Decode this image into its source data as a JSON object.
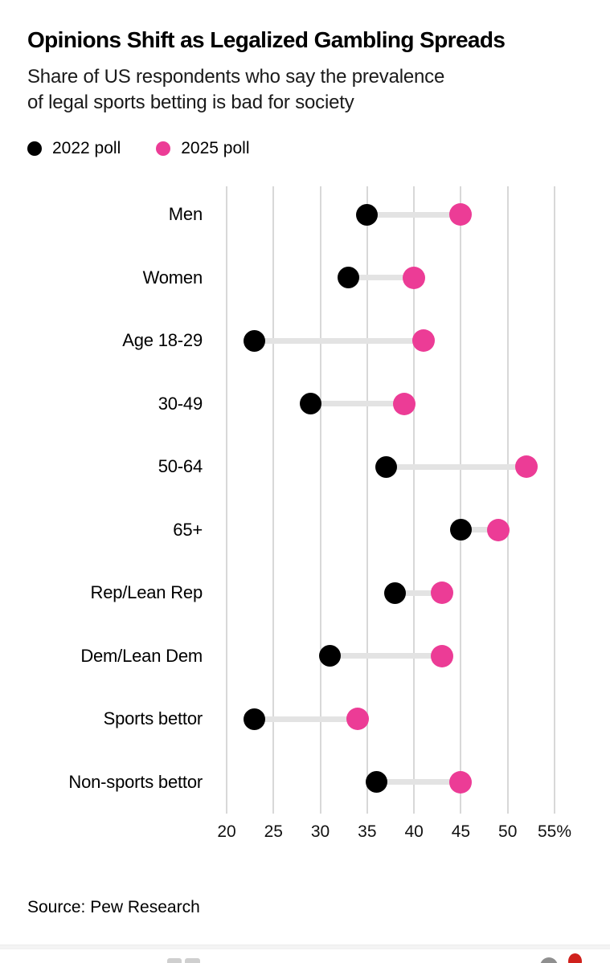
{
  "header": {
    "title": "Opinions Shift as Legalized Gambling Spreads",
    "subtitle_lines": [
      "Share of US respondents who say the prevalence",
      "of legal sports betting is bad for society"
    ]
  },
  "legend": {
    "items": [
      {
        "label": "2022 poll",
        "color": "#000000"
      },
      {
        "label": "2025 poll",
        "color": "#ec3c96"
      }
    ]
  },
  "chart_data": {
    "type": "scatter",
    "subtype": "dumbbell-dot-plot",
    "categories": [
      "Men",
      "Women",
      "Age 18-29",
      "30-49",
      "50-64",
      "65+",
      "Rep/Lean Rep",
      "Dem/Lean Dem",
      "Sports bettor",
      "Non-sports bettor"
    ],
    "series": [
      {
        "name": "2022 poll",
        "color": "#000000",
        "values": [
          35,
          33,
          23,
          29,
          37,
          45,
          38,
          31,
          23,
          36
        ]
      },
      {
        "name": "2025 poll",
        "color": "#ec3c96",
        "values": [
          45,
          40,
          41,
          39,
          52,
          49,
          43,
          43,
          34,
          45
        ]
      }
    ],
    "title": "Opinions Shift as Legalized Gambling Spreads",
    "xlabel": "",
    "ylabel": "",
    "unit": "%",
    "xlim": [
      20,
      55
    ],
    "xticks": [
      20,
      25,
      30,
      35,
      40,
      45,
      50,
      55
    ],
    "xtick_labels": [
      "20",
      "25",
      "30",
      "35",
      "40",
      "45",
      "50",
      "55%"
    ],
    "grid": "vertical-on",
    "legend_position": "top-left",
    "connector_color": "#e3e3e3",
    "gridline_color": "#d8d8d8"
  },
  "source": {
    "text": "Source: Pew Research"
  },
  "colors": {
    "background": "#ffffff",
    "accent_pink": "#ec3c96",
    "series_black": "#000000",
    "bottom_red_dot": "#d0211c",
    "bottom_grey_avatar": "#8f8f8f"
  }
}
